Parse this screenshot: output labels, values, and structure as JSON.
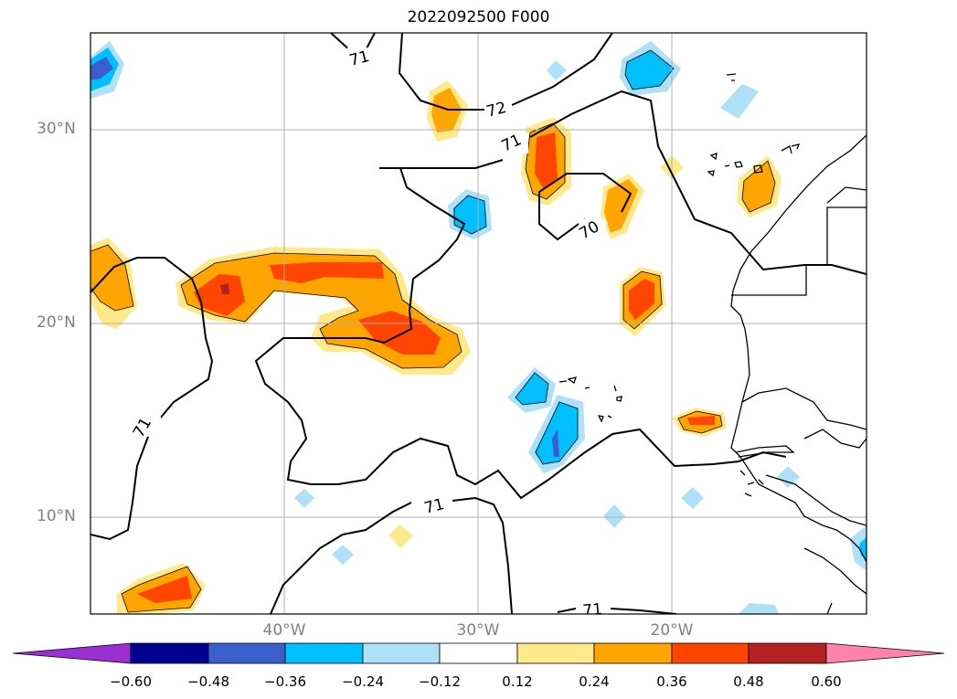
{
  "title": "2022092500 F000",
  "lat_labels": [
    "30°N",
    "20°N",
    "10°N"
  ],
  "lon_labels": [
    "40°W",
    "30°W",
    "20°W"
  ],
  "contour_labels": [
    "71",
    "72",
    "71",
    "70",
    "71",
    "71",
    "71"
  ],
  "colorbar": {
    "ticks": [
      "−0.60",
      "−0.48",
      "−0.36",
      "−0.24",
      "−0.12",
      "0.12",
      "0.24",
      "0.36",
      "0.48",
      "0.60"
    ],
    "colors": [
      "#9b30d2",
      "#000090",
      "#3a5fcd",
      "#00bfff",
      "#aee0f8",
      "#ffffff",
      "#ffe98a",
      "#ffa500",
      "#ff4500",
      "#b22222",
      "#ff82ab"
    ]
  },
  "colors": {
    "yellow": "#ffe98a",
    "orange": "#ffa500",
    "red": "#ff4500",
    "darkred": "#b22222",
    "lightblue": "#aee0f8",
    "cyan": "#00bfff",
    "blue": "#3a5fcd",
    "grid": "#b0b0b0"
  }
}
